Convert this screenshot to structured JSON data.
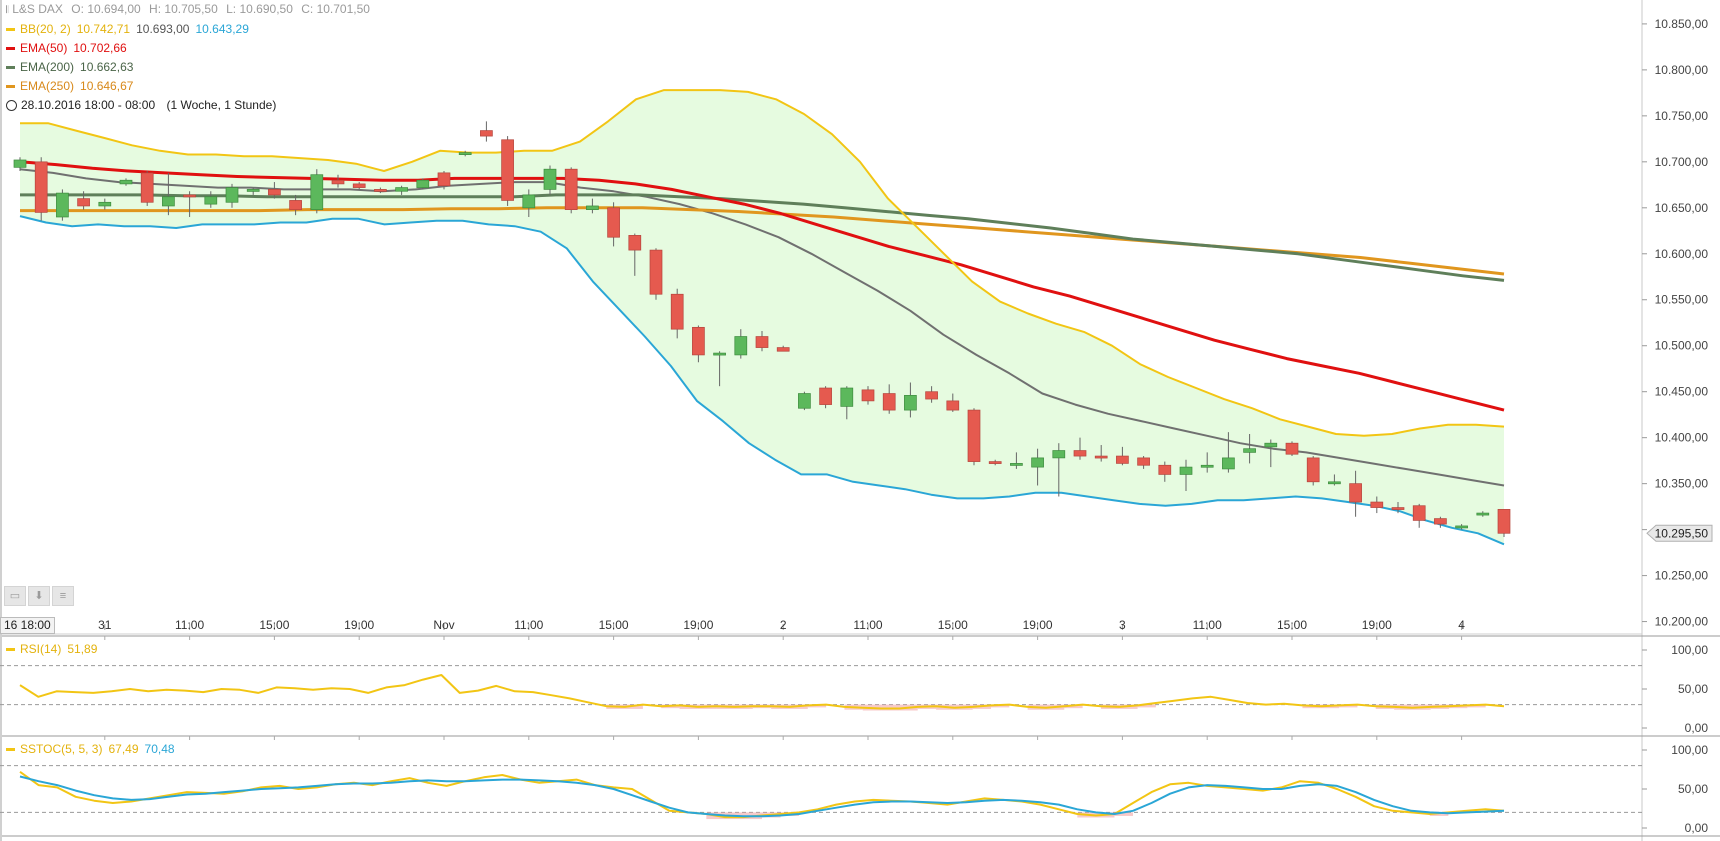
{
  "legend": {
    "instrument": "L&S DAX",
    "ohlc": {
      "o_label": "O:",
      "o": "10.694,00",
      "h_label": "H:",
      "h": "10.705,50",
      "l_label": "L:",
      "l": "10.690,50",
      "c_label": "C:",
      "c": "10.701,50"
    },
    "bb": {
      "name": "BB(20, 2)",
      "upper": "10.742,71",
      "mid": "10.693,00",
      "lower": "10.643,29"
    },
    "ema50": {
      "name": "EMA(50)",
      "value": "10.702,66"
    },
    "ema200": {
      "name": "EMA(200)",
      "value": "10.662,63"
    },
    "ema250": {
      "name": "EMA(250)",
      "value": "10.646,67"
    },
    "period": "28.10.2016 18:00 - 08:00",
    "range": "(1 Woche, 1 Stunde)"
  },
  "colors": {
    "bb_upper": "#f2c514",
    "bb_lower": "#2aa6d6",
    "bb_fill": "#e6fbe0",
    "ema50": "#e01010",
    "ema200": "#5f7f5a",
    "ema250": "#e0961e",
    "mid": "#707070",
    "candle_up": "#5cb85c",
    "candle_down": "#e55a4f",
    "rsi": "#f2c514",
    "stoc_k": "#f2c514",
    "stoc_d": "#2aa6d6",
    "oversold_fill": "#f2a7a7"
  },
  "last_price": "10.295,50",
  "time_box": "16 18:00",
  "rsi_panel": {
    "name": "RSI(14)",
    "value": "51,89",
    "ticks": [
      "100,00",
      "50,00",
      "0,00"
    ]
  },
  "stoc_panel": {
    "name": "SSTOC(5, 5, 3)",
    "k": "67,49",
    "d": "70,48",
    "ticks": [
      "100,00",
      "50,00",
      "0,00"
    ]
  },
  "chart_data": {
    "type": "candlestick",
    "x_labels": [
      {
        "i": 4,
        "t": "31"
      },
      {
        "i": 8,
        "t": "11:00"
      },
      {
        "i": 12,
        "t": "15:00"
      },
      {
        "i": 16,
        "t": "19:00"
      },
      {
        "i": 20,
        "t": "Nov"
      },
      {
        "i": 24,
        "t": "11:00"
      },
      {
        "i": 28,
        "t": "15:00"
      },
      {
        "i": 32,
        "t": "19:00"
      },
      {
        "i": 36,
        "t": "2"
      },
      {
        "i": 40,
        "t": "11:00"
      },
      {
        "i": 44,
        "t": "15:00"
      },
      {
        "i": 48,
        "t": "19:00"
      },
      {
        "i": 52,
        "t": "3"
      },
      {
        "i": 56,
        "t": "11:00"
      },
      {
        "i": 60,
        "t": "15:00"
      },
      {
        "i": 64,
        "t": "19:00"
      },
      {
        "i": 68,
        "t": "4"
      }
    ],
    "y_ticks": [
      10850,
      10800,
      10750,
      10700,
      10650,
      10600,
      10550,
      10500,
      10450,
      10400,
      10350,
      10300,
      10250,
      10200
    ],
    "y_tick_labels": [
      "10.850,00",
      "10.800,00",
      "10.750,00",
      "10.700,00",
      "10.650,00",
      "10.600,00",
      "10.550,00",
      "10.500,00",
      "10.450,00",
      "10.400,00",
      "10.350,00",
      "10.300,00",
      "10.250,00",
      "10.200,00"
    ],
    "ylim": [
      10193,
      10876
    ],
    "candles": [
      [
        10694,
        10705,
        10690,
        10702
      ],
      [
        10700,
        10705,
        10636,
        10645
      ],
      [
        10640,
        10670,
        10636,
        10666
      ],
      [
        10660,
        10668,
        10648,
        10652
      ],
      [
        10652,
        10660,
        10648,
        10656
      ],
      [
        10676,
        10682,
        10674,
        10680
      ],
      [
        10688,
        10690,
        10652,
        10656
      ],
      [
        10652,
        10688,
        10642,
        10662
      ],
      [
        10664,
        10668,
        10640,
        10662
      ],
      [
        10654,
        10668,
        10650,
        10662
      ],
      [
        10656,
        10676,
        10650,
        10672
      ],
      [
        10668,
        10672,
        10664,
        10670
      ],
      [
        10670,
        10678,
        10660,
        10664
      ],
      [
        10658,
        10664,
        10642,
        10648
      ],
      [
        10648,
        10692,
        10644,
        10686
      ],
      [
        10680,
        10686,
        10672,
        10676
      ],
      [
        10676,
        10678,
        10670,
        10672
      ],
      [
        10670,
        10672,
        10666,
        10668
      ],
      [
        10668,
        10674,
        10664,
        10672
      ],
      [
        10672,
        10682,
        10670,
        10680
      ],
      [
        10688,
        10690,
        10670,
        10674
      ],
      [
        10708,
        10712,
        10706,
        10710
      ],
      [
        10734,
        10744,
        10722,
        10728
      ],
      [
        10724,
        10728,
        10652,
        10658
      ],
      [
        10650,
        10670,
        10640,
        10664
      ],
      [
        10670,
        10696,
        10664,
        10692
      ],
      [
        10692,
        10694,
        10644,
        10648
      ],
      [
        10648,
        10660,
        10644,
        10652
      ],
      [
        10650,
        10656,
        10608,
        10618
      ],
      [
        10620,
        10622,
        10576,
        10604
      ],
      [
        10604,
        10606,
        10550,
        10556
      ],
      [
        10556,
        10562,
        10508,
        10518
      ],
      [
        10520,
        10522,
        10482,
        10490
      ],
      [
        10490,
        10494,
        10456,
        10492
      ],
      [
        10490,
        10518,
        10486,
        10510
      ],
      [
        10510,
        10516,
        10494,
        10498
      ],
      [
        10498,
        10500,
        10494,
        10494
      ],
      [
        10432,
        10450,
        10430,
        10448
      ],
      [
        10454,
        10456,
        10432,
        10436
      ],
      [
        10434,
        10456,
        10420,
        10454
      ],
      [
        10452,
        10456,
        10436,
        10440
      ],
      [
        10448,
        10458,
        10426,
        10430
      ],
      [
        10430,
        10460,
        10422,
        10446
      ],
      [
        10450,
        10456,
        10438,
        10442
      ],
      [
        10440,
        10448,
        10428,
        10430
      ],
      [
        10430,
        10432,
        10370,
        10374
      ],
      [
        10374,
        10376,
        10370,
        10372
      ],
      [
        10370,
        10384,
        10366,
        10372
      ],
      [
        10368,
        10388,
        10348,
        10378
      ],
      [
        10378,
        10394,
        10336,
        10386
      ],
      [
        10386,
        10400,
        10376,
        10380
      ],
      [
        10380,
        10392,
        10374,
        10378
      ],
      [
        10380,
        10390,
        10370,
        10372
      ],
      [
        10378,
        10380,
        10366,
        10370
      ],
      [
        10370,
        10374,
        10352,
        10360
      ],
      [
        10360,
        10376,
        10342,
        10368
      ],
      [
        10368,
        10384,
        10362,
        10370
      ],
      [
        10366,
        10406,
        10362,
        10378
      ],
      [
        10384,
        10404,
        10372,
        10388
      ],
      [
        10390,
        10398,
        10368,
        10394
      ],
      [
        10394,
        10396,
        10380,
        10382
      ],
      [
        10378,
        10380,
        10348,
        10352
      ],
      [
        10352,
        10360,
        10348,
        10352
      ],
      [
        10350,
        10364,
        10314,
        10330
      ],
      [
        10330,
        10336,
        10318,
        10324
      ],
      [
        10324,
        10330,
        10318,
        10322
      ],
      [
        10326,
        10328,
        10302,
        10310
      ],
      [
        10312,
        10314,
        10302,
        10306
      ],
      [
        10302,
        10306,
        10300,
        10304
      ],
      [
        10316,
        10320,
        10314,
        10318
      ],
      [
        10322,
        10322,
        10292,
        10296
      ]
    ],
    "bb_upper": [
      10742,
      10742,
      10734,
      10726,
      10718,
      10712,
      10708,
      10708,
      10706,
      10706,
      10704,
      10702,
      10698,
      10690,
      10700,
      10712,
      10710,
      10710,
      10712,
      10712,
      10722,
      10744,
      10768,
      10778,
      10778,
      10778,
      10776,
      10768,
      10752,
      10730,
      10700,
      10660,
      10630,
      10600,
      10570,
      10548,
      10535,
      10524,
      10515,
      10500,
      10480,
      10466,
      10454,
      10442,
      10432,
      10420,
      10412,
      10404,
      10402,
      10404,
      10410,
      10414,
      10414,
      10412
    ],
    "bb_mid": [
      10692,
      10688,
      10682,
      10678,
      10676,
      10674,
      10672,
      10672,
      10670,
      10670,
      10670,
      10668,
      10670,
      10674,
      10676,
      10678,
      10678,
      10672,
      10668,
      10662,
      10654,
      10644,
      10632,
      10618,
      10600,
      10580,
      10560,
      10538,
      10512,
      10490,
      10470,
      10448,
      10436,
      10426,
      10418,
      10410,
      10402,
      10394,
      10388,
      10384,
      10378,
      10372,
      10366,
      10360,
      10354,
      10348
    ],
    "bb_lower": [
      10641,
      10634,
      10630,
      10632,
      10630,
      10630,
      10628,
      10632,
      10632,
      10632,
      10634,
      10634,
      10638,
      10638,
      10632,
      10634,
      10636,
      10636,
      10632,
      10630,
      10624,
      10606,
      10570,
      10540,
      10510,
      10478,
      10440,
      10418,
      10394,
      10376,
      10360,
      10360,
      10352,
      10348,
      10344,
      10338,
      10334,
      10334,
      10336,
      10340,
      10340,
      10336,
      10332,
      10328,
      10326,
      10328,
      10332,
      10332,
      10334,
      10336,
      10334,
      10330,
      10326,
      10320,
      10310,
      10302,
      10296,
      10284
    ],
    "ema50": [
      10700,
      10697,
      10693,
      10690,
      10688,
      10686,
      10684,
      10683,
      10682,
      10681,
      10680,
      10680,
      10682,
      10682,
      10682,
      10682,
      10680,
      10676,
      10670,
      10662,
      10654,
      10644,
      10632,
      10620,
      10608,
      10598,
      10588,
      10576,
      10564,
      10554,
      10542,
      10530,
      10518,
      10506,
      10496,
      10486,
      10478,
      10470,
      10460,
      10450,
      10440,
      10430
    ],
    "ema200": [
      10664,
      10664,
      10664,
      10664,
      10663,
      10663,
      10662,
      10662,
      10662,
      10662,
      10662,
      10662,
      10662,
      10664,
      10664,
      10664,
      10662,
      10660,
      10657,
      10654,
      10650,
      10646,
      10642,
      10638,
      10633,
      10628,
      10622,
      10616,
      10612,
      10608,
      10604,
      10600,
      10594,
      10588,
      10582,
      10576,
      10571
    ],
    "ema250": [
      10647,
      10647,
      10647,
      10647,
      10647,
      10647,
      10648,
      10648,
      10648,
      10649,
      10649,
      10650,
      10650,
      10650,
      10648,
      10646,
      10643,
      10640,
      10636,
      10632,
      10628,
      10624,
      10620,
      10616,
      10612,
      10608,
      10604,
      10600,
      10596,
      10590,
      10584,
      10578
    ],
    "rsi": [
      55,
      40,
      47,
      46,
      45,
      47,
      50,
      47,
      49,
      48,
      46,
      50,
      49,
      45,
      52,
      51,
      49,
      51,
      50,
      45,
      52,
      55,
      62,
      68,
      45,
      48,
      54,
      47,
      46,
      42,
      38,
      33,
      28,
      27,
      30,
      28,
      29,
      27,
      28,
      27,
      28,
      28,
      27,
      29,
      30,
      27,
      26,
      25,
      25,
      27,
      28,
      26,
      27,
      29,
      30,
      27,
      26,
      28,
      30,
      28,
      27,
      29,
      32,
      35,
      38,
      40,
      36,
      32,
      30,
      31,
      29,
      28,
      29,
      30,
      28,
      27,
      26,
      27,
      28,
      29,
      30,
      28
    ],
    "stoc_k": [
      72,
      55,
      52,
      40,
      35,
      32,
      34,
      38,
      42,
      46,
      45,
      44,
      47,
      52,
      54,
      50,
      52,
      56,
      58,
      55,
      60,
      64,
      58,
      54,
      60,
      65,
      68,
      62,
      58,
      60,
      62,
      55,
      52,
      50,
      36,
      22,
      20,
      18,
      14,
      14,
      16,
      18,
      20,
      24,
      30,
      34,
      36,
      35,
      34,
      32,
      30,
      34,
      38,
      36,
      34,
      30,
      24,
      18,
      16,
      18,
      32,
      46,
      56,
      58,
      54,
      52,
      50,
      48,
      52,
      60,
      58,
      50,
      40,
      28,
      22,
      20,
      18,
      20,
      22,
      24,
      22
    ],
    "stoc_d": [
      66,
      60,
      55,
      48,
      42,
      38,
      36,
      37,
      40,
      43,
      44,
      46,
      48,
      50,
      51,
      52,
      54,
      56,
      57,
      57,
      58,
      60,
      61,
      60,
      60,
      61,
      62,
      62,
      61,
      60,
      58,
      55,
      50,
      42,
      34,
      26,
      20,
      18,
      16,
      15,
      15,
      16,
      18,
      22,
      26,
      30,
      33,
      34,
      34,
      33,
      32,
      33,
      35,
      36,
      35,
      33,
      30,
      24,
      20,
      18,
      22,
      32,
      44,
      52,
      55,
      54,
      52,
      50,
      50,
      54,
      56,
      54,
      46,
      36,
      28,
      22,
      20,
      19,
      20,
      21,
      22
    ]
  }
}
